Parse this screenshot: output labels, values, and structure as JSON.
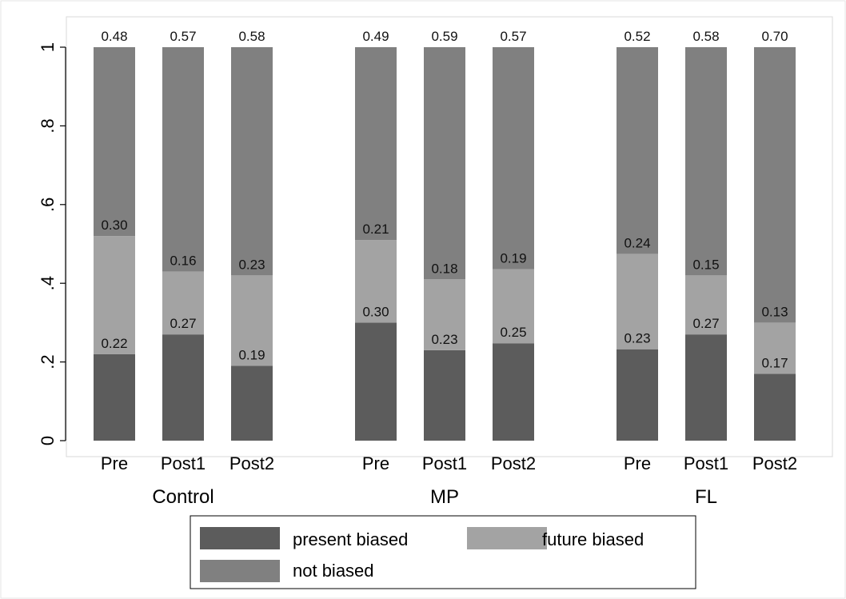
{
  "chart_data": {
    "type": "bar",
    "stacked": true,
    "grid": false,
    "legend_position": "bottom",
    "ylim": [
      0,
      1
    ],
    "yticks": [
      0,
      0.2,
      0.4,
      0.6,
      0.8,
      1
    ],
    "ytick_labels": [
      "0",
      ".2",
      ".4",
      ".6",
      ".8",
      "1"
    ],
    "groups": [
      "Control",
      "MP",
      "FL"
    ],
    "categories": [
      "Pre",
      "Post1",
      "Post2"
    ],
    "series": [
      {
        "name": "present biased",
        "color": "#5c5c5c",
        "values": [
          [
            0.22,
            0.27,
            0.19
          ],
          [
            0.3,
            0.23,
            0.25
          ],
          [
            0.23,
            0.27,
            0.17
          ]
        ],
        "labels": [
          [
            "0.22",
            "0.27",
            "0.19"
          ],
          [
            "0.30",
            "0.23",
            "0.25"
          ],
          [
            "0.23",
            "0.27",
            "0.17"
          ]
        ]
      },
      {
        "name": "future biased",
        "color": "#a3a3a3",
        "values": [
          [
            0.3,
            0.16,
            0.23
          ],
          [
            0.21,
            0.18,
            0.19
          ],
          [
            0.24,
            0.15,
            0.13
          ]
        ],
        "labels": [
          [
            "0.30",
            "0.16",
            "0.23"
          ],
          [
            "0.21",
            "0.18",
            "0.19"
          ],
          [
            "0.24",
            "0.15",
            "0.13"
          ]
        ]
      },
      {
        "name": "not biased",
        "color": "#808080",
        "values": [
          [
            0.48,
            0.57,
            0.58
          ],
          [
            0.49,
            0.59,
            0.57
          ],
          [
            0.52,
            0.58,
            0.7
          ]
        ],
        "labels": [
          [
            "0.48",
            "0.57",
            "0.58"
          ],
          [
            "0.49",
            "0.59",
            "0.57"
          ],
          [
            "0.52",
            "0.58",
            "0.70"
          ]
        ]
      }
    ]
  }
}
